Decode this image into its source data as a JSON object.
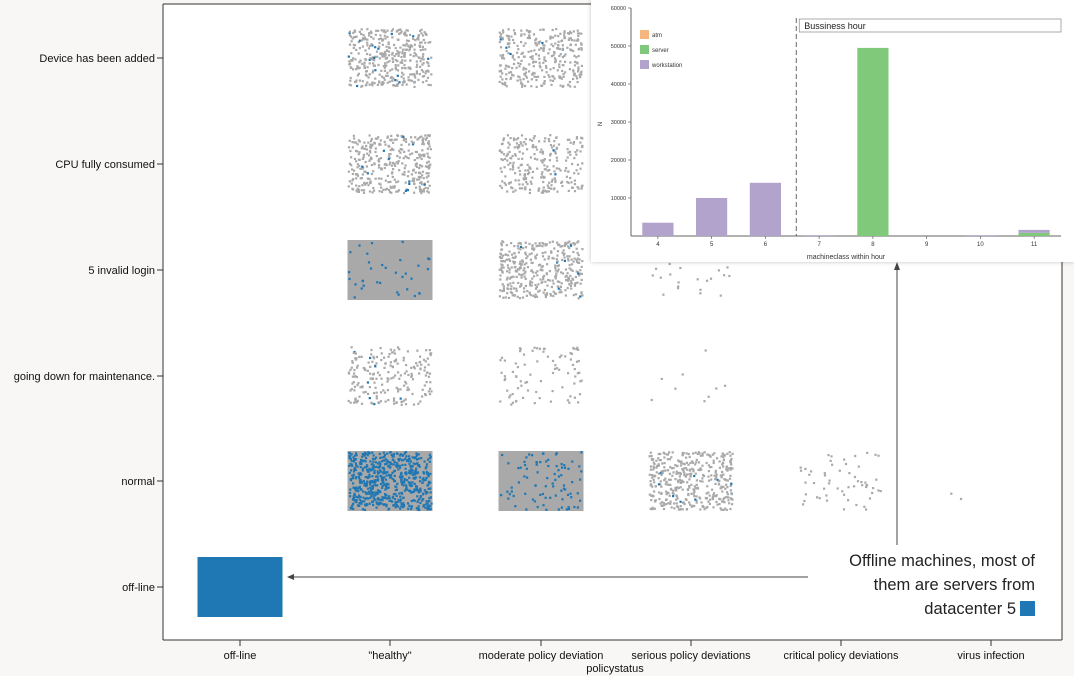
{
  "chart_data": [
    {
      "type": "scatter",
      "subtype": "jittered-categorical-grid",
      "title": "",
      "xlabel": "policystatus",
      "ylabel": "",
      "x_categories": [
        "off-line",
        "\"healthy\"",
        "moderate policy deviation",
        "serious policy deviations",
        "critical policy deviations",
        "virus infection"
      ],
      "y_categories": [
        "Device has been added",
        "CPU fully consumed",
        "5 invalid login",
        "going down for maintenance.",
        "normal",
        "off-line"
      ],
      "colors": {
        "other": "#a9a9a9",
        "datacenter5": "#1f77b4"
      },
      "cells": [
        {
          "y": "Device has been added",
          "x": "\"healthy\"",
          "density": 0.85,
          "highlight": 0.04
        },
        {
          "y": "Device has been added",
          "x": "moderate policy deviation",
          "density": 0.7,
          "highlight": 0.01
        },
        {
          "y": "CPU fully consumed",
          "x": "\"healthy\"",
          "density": 0.75,
          "highlight": 0.04
        },
        {
          "y": "CPU fully consumed",
          "x": "moderate policy deviation",
          "density": 0.55,
          "highlight": 0.01
        },
        {
          "y": "5 invalid login",
          "x": "\"healthy\"",
          "density": 1.0,
          "highlight": 0.04
        },
        {
          "y": "5 invalid login",
          "x": "moderate policy deviation",
          "density": 0.8,
          "highlight": 0.02
        },
        {
          "y": "5 invalid login",
          "x": "serious policy deviations",
          "density": 0.06,
          "highlight": 0
        },
        {
          "y": "going down for maintenance.",
          "x": "\"healthy\"",
          "density": 0.45,
          "highlight": 0.01
        },
        {
          "y": "going down for maintenance.",
          "x": "moderate policy deviation",
          "density": 0.18,
          "highlight": 0
        },
        {
          "y": "going down for maintenance.",
          "x": "serious policy deviations",
          "density": 0.02,
          "highlight": 0
        },
        {
          "y": "normal",
          "x": "\"healthy\"",
          "density": 1.0,
          "highlight": 0.75
        },
        {
          "y": "normal",
          "x": "moderate policy deviation",
          "density": 1.0,
          "highlight": 0.1
        },
        {
          "y": "normal",
          "x": "serious policy deviations",
          "density": 0.9,
          "highlight": 0.02
        },
        {
          "y": "normal",
          "x": "critical policy deviations",
          "density": 0.12,
          "highlight": 0
        },
        {
          "y": "normal",
          "x": "virus infection",
          "density": 0.004,
          "highlight": 0
        },
        {
          "y": "off-line",
          "x": "off-line",
          "density": 1.0,
          "highlight": 1.0
        }
      ],
      "annotation": {
        "lines": [
          "Offline machines, most of",
          "them are servers from",
          "datacenter 5"
        ],
        "swatch_color": "#1f77b4"
      }
    },
    {
      "type": "bar",
      "stacked": true,
      "title": "",
      "xlabel": "machineclass within hour",
      "ylabel": "N",
      "categories": [
        "4",
        "5",
        "6",
        "7",
        "8",
        "9",
        "10",
        "11"
      ],
      "ylim": [
        0,
        60000
      ],
      "yticks": [
        10000,
        20000,
        30000,
        40000,
        50000,
        60000
      ],
      "legend_position": "top-left",
      "series": [
        {
          "name": "atm",
          "color": "#f5b77f",
          "values": [
            0,
            0,
            0,
            0,
            0,
            0,
            0,
            0
          ]
        },
        {
          "name": "server",
          "color": "#80c97b",
          "values": [
            0,
            0,
            0,
            0,
            49500,
            0,
            0,
            800
          ]
        },
        {
          "name": "workstation",
          "color": "#b1a3cb",
          "values": [
            3500,
            10000,
            14000,
            200,
            0,
            0,
            200,
            800
          ]
        }
      ],
      "marker": {
        "label": "Bussiness hour",
        "at_category": "7"
      }
    }
  ]
}
